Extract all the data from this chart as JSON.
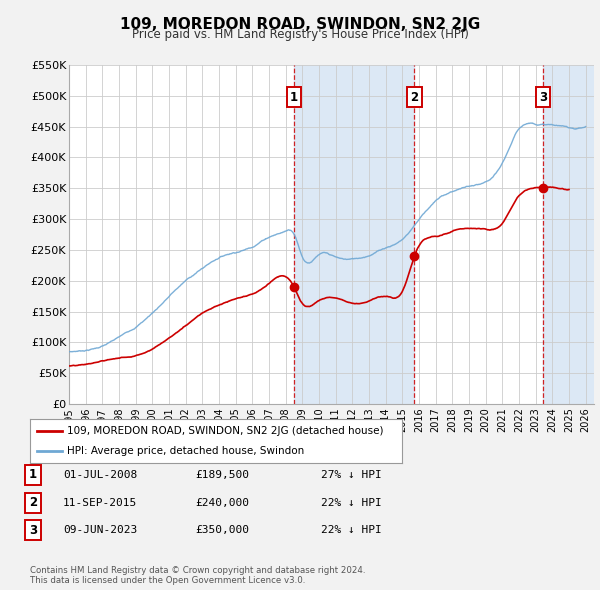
{
  "title": "109, MOREDON ROAD, SWINDON, SN2 2JG",
  "subtitle": "Price paid vs. HM Land Registry's House Price Index (HPI)",
  "ylim": [
    0,
    550000
  ],
  "yticks": [
    0,
    50000,
    100000,
    150000,
    200000,
    250000,
    300000,
    350000,
    400000,
    450000,
    500000,
    550000
  ],
  "ytick_labels": [
    "£0",
    "£50K",
    "£100K",
    "£150K",
    "£200K",
    "£250K",
    "£300K",
    "£350K",
    "£400K",
    "£450K",
    "£500K",
    "£550K"
  ],
  "xlim_start": 1995.0,
  "xlim_end": 2026.5,
  "transactions": [
    {
      "date_num": 2008.5,
      "price": 189500,
      "label": "1"
    },
    {
      "date_num": 2015.71,
      "price": 240000,
      "label": "2"
    },
    {
      "date_num": 2023.44,
      "price": 350000,
      "label": "3"
    }
  ],
  "transaction_table": [
    {
      "num": "1",
      "date": "01-JUL-2008",
      "price": "£189,500",
      "hpi": "27% ↓ HPI"
    },
    {
      "num": "2",
      "date": "11-SEP-2015",
      "price": "£240,000",
      "hpi": "22% ↓ HPI"
    },
    {
      "num": "3",
      "date": "09-JUN-2023",
      "price": "£350,000",
      "hpi": "22% ↓ HPI"
    }
  ],
  "hpi_color": "#6fa8d4",
  "price_color": "#cc0000",
  "bg_color": "#f2f2f2",
  "plot_bg_color": "#ffffff",
  "shade_color": "#dce8f5",
  "legend_label_price": "109, MOREDON ROAD, SWINDON, SN2 2JG (detached house)",
  "legend_label_hpi": "HPI: Average price, detached house, Swindon",
  "footer": "Contains HM Land Registry data © Crown copyright and database right 2024.\nThis data is licensed under the Open Government Licence v3.0.",
  "shaded_regions": [
    {
      "start": 2008.5,
      "end": 2015.71
    },
    {
      "start": 2023.44,
      "end": 2026.5
    }
  ]
}
